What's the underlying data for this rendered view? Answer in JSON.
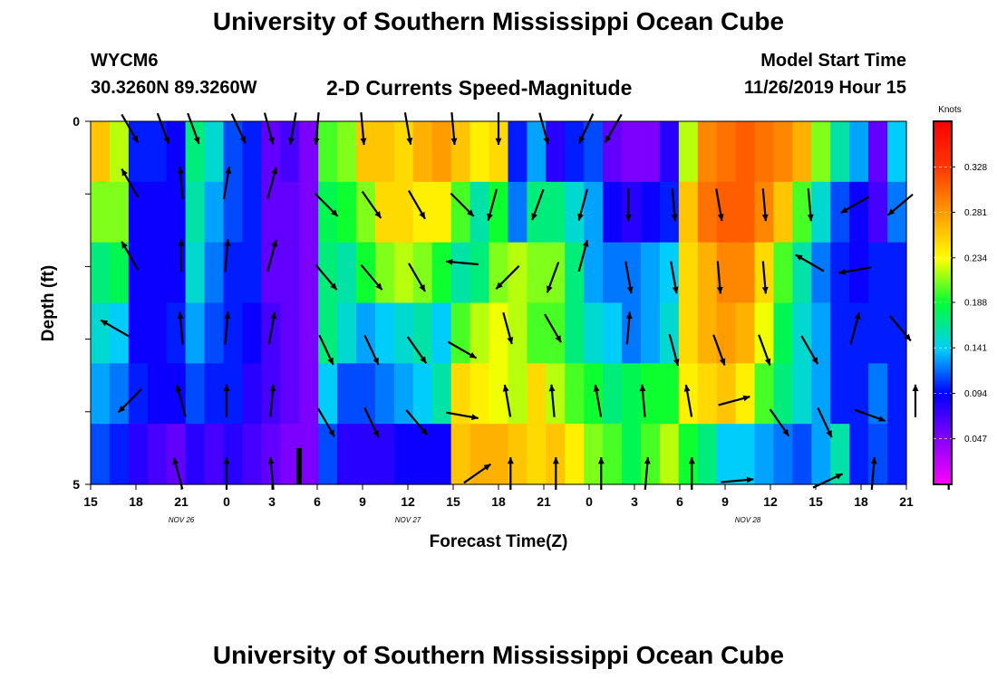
{
  "header": {
    "title": "University of Southern Mississippi Ocean Cube",
    "station": "WYCM6",
    "coords": "30.3260N 89.3260W",
    "subtitle": "2-D Currents Speed-Magnitude",
    "model_start_label": "Model Start Time",
    "model_start_value": "11/26/2019 Hour 15"
  },
  "footer": {
    "title": "University of Southern Mississippi Ocean Cube"
  },
  "chart_data": {
    "type": "heatmap",
    "xlabel": "Forecast Time(Z)",
    "ylabel": "Depth (ft)",
    "x_tick_labels": [
      "15",
      "18",
      "21",
      "0",
      "3",
      "6",
      "9",
      "12",
      "15",
      "18",
      "21",
      "0",
      "3",
      "6",
      "9",
      "12",
      "15",
      "18",
      "21"
    ],
    "date_labels": [
      {
        "text": "NOV  26",
        "at_tick": 2
      },
      {
        "text": "NOV  27",
        "at_tick": 7
      },
      {
        "text": "NOV  28",
        "at_tick": 14.5
      }
    ],
    "y_tick_labels": [
      "0",
      "5"
    ],
    "ylim": [
      0,
      5
    ],
    "colorbar": {
      "unit": "Knots",
      "min": 0.0,
      "max": 0.375,
      "labels": [
        "0.328",
        "0.281",
        "0.234",
        "0.188",
        "0.141",
        "0.094",
        "0.047"
      ],
      "label_values": [
        0.328,
        0.281,
        0.234,
        0.188,
        0.141,
        0.094,
        0.047
      ]
    },
    "depth_rows": 5,
    "speeds": [
      [
        0.26,
        0.22,
        0.1,
        0.1,
        0.09,
        0.17,
        0.15,
        0.11,
        0.1,
        0.06,
        0.07,
        0.05,
        0.2,
        0.21,
        0.26,
        0.26,
        0.25,
        0.27,
        0.28,
        0.26,
        0.24,
        0.25,
        0.1,
        0.13,
        0.08,
        0.1,
        0.11,
        0.06,
        0.05,
        0.05,
        0.08,
        0.22,
        0.29,
        0.3,
        0.31,
        0.3,
        0.29,
        0.27,
        0.21,
        0.16,
        0.13,
        0.06,
        0.14
      ],
      [
        0.21,
        0.21,
        0.09,
        0.09,
        0.09,
        0.16,
        0.13,
        0.11,
        0.1,
        0.06,
        0.06,
        0.05,
        0.18,
        0.19,
        0.21,
        0.25,
        0.25,
        0.24,
        0.24,
        0.2,
        0.16,
        0.19,
        0.12,
        0.17,
        0.17,
        0.15,
        0.13,
        0.09,
        0.08,
        0.09,
        0.1,
        0.26,
        0.3,
        0.31,
        0.31,
        0.29,
        0.26,
        0.2,
        0.15,
        0.11,
        0.09,
        0.07,
        0.12
      ],
      [
        0.17,
        0.18,
        0.09,
        0.09,
        0.09,
        0.15,
        0.12,
        0.1,
        0.1,
        0.06,
        0.06,
        0.05,
        0.17,
        0.16,
        0.19,
        0.21,
        0.22,
        0.21,
        0.19,
        0.16,
        0.17,
        0.21,
        0.22,
        0.21,
        0.21,
        0.17,
        0.13,
        0.12,
        0.12,
        0.13,
        0.14,
        0.25,
        0.27,
        0.29,
        0.29,
        0.25,
        0.2,
        0.16,
        0.12,
        0.1,
        0.09,
        0.1,
        0.1
      ],
      [
        0.15,
        0.14,
        0.09,
        0.09,
        0.1,
        0.13,
        0.11,
        0.1,
        0.09,
        0.07,
        0.06,
        0.05,
        0.17,
        0.15,
        0.13,
        0.14,
        0.15,
        0.16,
        0.14,
        0.2,
        0.22,
        0.23,
        0.22,
        0.2,
        0.2,
        0.17,
        0.15,
        0.14,
        0.12,
        0.13,
        0.15,
        0.25,
        0.27,
        0.28,
        0.27,
        0.23,
        0.18,
        0.15,
        0.13,
        0.1,
        0.1,
        0.1,
        0.1
      ],
      [
        0.13,
        0.12,
        0.1,
        0.09,
        0.09,
        0.11,
        0.1,
        0.1,
        0.08,
        0.07,
        0.06,
        0.05,
        0.14,
        0.11,
        0.11,
        0.12,
        0.13,
        0.14,
        0.16,
        0.25,
        0.24,
        0.23,
        0.22,
        0.25,
        0.22,
        0.2,
        0.19,
        0.17,
        0.18,
        0.19,
        0.19,
        0.24,
        0.25,
        0.26,
        0.24,
        0.2,
        0.17,
        0.15,
        0.13,
        0.1,
        0.1,
        0.12,
        0.1
      ],
      [
        0.11,
        0.1,
        0.08,
        0.07,
        0.06,
        0.08,
        0.07,
        0.08,
        0.07,
        0.06,
        0.05,
        0.05,
        0.11,
        0.08,
        0.08,
        0.08,
        0.09,
        0.09,
        0.09,
        0.26,
        0.27,
        0.27,
        0.26,
        0.25,
        0.26,
        0.24,
        0.21,
        0.2,
        0.18,
        0.2,
        0.22,
        0.19,
        0.17,
        0.14,
        0.14,
        0.13,
        0.12,
        0.11,
        0.13,
        0.16,
        0.1,
        0.11,
        0.1
      ]
    ],
    "vectors": [
      {
        "h": 17.6,
        "d": 0.1,
        "dir": 150,
        "len": 0.6
      },
      {
        "h": 19.8,
        "d": 0.1,
        "dir": 160,
        "len": 0.6
      },
      {
        "h": 21.8,
        "d": 0.1,
        "dir": 160,
        "len": 0.6
      },
      {
        "h": 24.8,
        "d": 0.1,
        "dir": 155,
        "len": 0.6
      },
      {
        "h": 26.8,
        "d": 0.1,
        "dir": 165,
        "len": 0.6
      },
      {
        "h": 28.4,
        "d": 0.1,
        "dir": 190,
        "len": 0.6
      },
      {
        "h": 30.0,
        "d": 0.1,
        "dir": 185,
        "len": 0.6
      },
      {
        "h": 33.0,
        "d": 0.1,
        "dir": 175,
        "len": 0.6
      },
      {
        "h": 36.0,
        "d": 0.1,
        "dir": 170,
        "len": 0.6
      },
      {
        "h": 39.0,
        "d": 0.1,
        "dir": 175,
        "len": 0.6
      },
      {
        "h": 42.0,
        "d": 0.1,
        "dir": 180,
        "len": 0.6
      },
      {
        "h": 45.0,
        "d": 0.1,
        "dir": 165,
        "len": 0.6
      },
      {
        "h": 47.8,
        "d": 0.1,
        "dir": 205,
        "len": 0.6
      },
      {
        "h": 49.6,
        "d": 0.1,
        "dir": 210,
        "len": 0.6
      },
      {
        "h": 17.6,
        "d": 0.85,
        "dir": 330,
        "len": 0.6
      },
      {
        "h": 21.0,
        "d": 0.85,
        "dir": 355,
        "len": 0.6
      },
      {
        "h": 24.0,
        "d": 0.85,
        "dir": 10,
        "len": 0.6
      },
      {
        "h": 27.0,
        "d": 0.85,
        "dir": 15,
        "len": 0.6
      },
      {
        "h": 30.6,
        "d": 1.15,
        "dir": 135,
        "len": 0.6
      },
      {
        "h": 33.6,
        "d": 1.15,
        "dir": 145,
        "len": 0.6
      },
      {
        "h": 36.6,
        "d": 1.15,
        "dir": 150,
        "len": 0.6
      },
      {
        "h": 39.6,
        "d": 1.15,
        "dir": 135,
        "len": 0.6
      },
      {
        "h": 41.6,
        "d": 1.15,
        "dir": 195,
        "len": 0.6
      },
      {
        "h": 44.6,
        "d": 1.15,
        "dir": 200,
        "len": 0.6
      },
      {
        "h": 47.6,
        "d": 1.15,
        "dir": 195,
        "len": 0.6
      },
      {
        "h": 50.6,
        "d": 1.15,
        "dir": 180,
        "len": 0.6
      },
      {
        "h": 53.6,
        "d": 1.15,
        "dir": 175,
        "len": 0.6
      },
      {
        "h": 56.6,
        "d": 1.15,
        "dir": 170,
        "len": 0.6
      },
      {
        "h": 59.6,
        "d": 1.15,
        "dir": 175,
        "len": 0.6
      },
      {
        "h": 62.6,
        "d": 1.15,
        "dir": 175,
        "len": 0.6
      },
      {
        "h": 65.6,
        "d": 1.15,
        "dir": 240,
        "len": 0.6
      },
      {
        "h": 68.6,
        "d": 1.15,
        "dir": 230,
        "len": 0.6
      },
      {
        "h": 17.6,
        "d": 1.85,
        "dir": 330,
        "len": 0.6
      },
      {
        "h": 21.0,
        "d": 1.85,
        "dir": 360,
        "len": 0.6
      },
      {
        "h": 24.0,
        "d": 1.85,
        "dir": 5,
        "len": 0.6
      },
      {
        "h": 27.0,
        "d": 1.85,
        "dir": 15,
        "len": 0.6
      },
      {
        "h": 30.6,
        "d": 2.15,
        "dir": 140,
        "len": 0.6
      },
      {
        "h": 33.6,
        "d": 2.15,
        "dir": 140,
        "len": 0.6
      },
      {
        "h": 36.6,
        "d": 2.15,
        "dir": 150,
        "len": 0.6
      },
      {
        "h": 39.6,
        "d": 1.95,
        "dir": 275,
        "len": 0.6
      },
      {
        "h": 42.6,
        "d": 2.15,
        "dir": 225,
        "len": 0.6
      },
      {
        "h": 45.6,
        "d": 2.15,
        "dir": 200,
        "len": 0.6
      },
      {
        "h": 47.6,
        "d": 1.85,
        "dir": 15,
        "len": 0.6
      },
      {
        "h": 50.6,
        "d": 2.15,
        "dir": 170,
        "len": 0.6
      },
      {
        "h": 53.6,
        "d": 2.15,
        "dir": 170,
        "len": 0.6
      },
      {
        "h": 56.6,
        "d": 2.15,
        "dir": 175,
        "len": 0.6
      },
      {
        "h": 59.6,
        "d": 2.15,
        "dir": 175,
        "len": 0.6
      },
      {
        "h": 62.6,
        "d": 1.95,
        "dir": 300,
        "len": 0.6
      },
      {
        "h": 65.6,
        "d": 2.05,
        "dir": 260,
        "len": 0.6
      },
      {
        "h": 16.6,
        "d": 2.85,
        "dir": 300,
        "len": 0.6
      },
      {
        "h": 21.0,
        "d": 2.85,
        "dir": 355,
        "len": 0.6
      },
      {
        "h": 24.0,
        "d": 2.85,
        "dir": 5,
        "len": 0.6
      },
      {
        "h": 27.0,
        "d": 2.85,
        "dir": 10,
        "len": 0.6
      },
      {
        "h": 30.6,
        "d": 3.15,
        "dir": 155,
        "len": 0.6
      },
      {
        "h": 33.6,
        "d": 3.15,
        "dir": 155,
        "len": 0.6
      },
      {
        "h": 36.6,
        "d": 3.15,
        "dir": 145,
        "len": 0.6
      },
      {
        "h": 39.6,
        "d": 3.15,
        "dir": 120,
        "len": 0.6
      },
      {
        "h": 42.6,
        "d": 2.85,
        "dir": 165,
        "len": 0.6
      },
      {
        "h": 45.6,
        "d": 2.85,
        "dir": 150,
        "len": 0.6
      },
      {
        "h": 50.6,
        "d": 2.85,
        "dir": 5,
        "len": 0.6
      },
      {
        "h": 53.6,
        "d": 3.15,
        "dir": 165,
        "len": 0.6
      },
      {
        "h": 56.6,
        "d": 3.15,
        "dir": 160,
        "len": 0.6
      },
      {
        "h": 59.6,
        "d": 3.15,
        "dir": 160,
        "len": 0.6
      },
      {
        "h": 62.6,
        "d": 3.15,
        "dir": 150,
        "len": 0.6
      },
      {
        "h": 65.6,
        "d": 2.85,
        "dir": 15,
        "len": 0.6
      },
      {
        "h": 68.6,
        "d": 2.85,
        "dir": 140,
        "len": 0.6
      },
      {
        "h": 17.6,
        "d": 3.85,
        "dir": 225,
        "len": 0.6
      },
      {
        "h": 21.0,
        "d": 3.85,
        "dir": 345,
        "len": 0.6
      },
      {
        "h": 24.0,
        "d": 3.85,
        "dir": 360,
        "len": 0.6
      },
      {
        "h": 27.0,
        "d": 3.85,
        "dir": 5,
        "len": 0.6
      },
      {
        "h": 30.6,
        "d": 4.15,
        "dir": 150,
        "len": 0.6
      },
      {
        "h": 33.6,
        "d": 4.15,
        "dir": 155,
        "len": 0.6
      },
      {
        "h": 36.6,
        "d": 4.15,
        "dir": 140,
        "len": 0.6
      },
      {
        "h": 39.6,
        "d": 4.05,
        "dir": 100,
        "len": 0.6
      },
      {
        "h": 42.6,
        "d": 3.85,
        "dir": 350,
        "len": 0.6
      },
      {
        "h": 45.6,
        "d": 3.85,
        "dir": 355,
        "len": 0.6
      },
      {
        "h": 48.6,
        "d": 3.85,
        "dir": 350,
        "len": 0.6
      },
      {
        "h": 51.6,
        "d": 3.85,
        "dir": 355,
        "len": 0.6
      },
      {
        "h": 54.6,
        "d": 3.85,
        "dir": 350,
        "len": 0.6
      },
      {
        "h": 57.6,
        "d": 3.85,
        "dir": 75,
        "len": 0.6
      },
      {
        "h": 60.6,
        "d": 4.15,
        "dir": 145,
        "len": 0.6
      },
      {
        "h": 63.6,
        "d": 4.15,
        "dir": 155,
        "len": 0.6
      },
      {
        "h": 66.6,
        "d": 4.05,
        "dir": 110,
        "len": 0.6
      },
      {
        "h": 69.6,
        "d": 3.85,
        "dir": 360,
        "len": 0.6
      },
      {
        "h": 71.6,
        "d": 3.85,
        "dir": 165,
        "len": 0.6
      },
      {
        "h": 20.8,
        "d": 4.85,
        "dir": 345,
        "len": 0.6
      },
      {
        "h": 24.0,
        "d": 4.85,
        "dir": 360,
        "len": 0.6
      },
      {
        "h": 27.0,
        "d": 4.85,
        "dir": 355,
        "len": 0.6
      },
      {
        "h": 40.6,
        "d": 4.85,
        "dir": 55,
        "len": 0.6
      },
      {
        "h": 42.8,
        "d": 4.85,
        "dir": 360,
        "len": 0.6
      },
      {
        "h": 45.8,
        "d": 4.85,
        "dir": 360,
        "len": 0.6
      },
      {
        "h": 48.8,
        "d": 4.85,
        "dir": 360,
        "len": 0.6
      },
      {
        "h": 51.8,
        "d": 4.85,
        "dir": 5,
        "len": 0.6
      },
      {
        "h": 54.8,
        "d": 4.85,
        "dir": 360,
        "len": 0.6
      },
      {
        "h": 57.8,
        "d": 4.95,
        "dir": 85,
        "len": 0.6
      },
      {
        "h": 63.8,
        "d": 4.95,
        "dir": 65,
        "len": 0.6
      },
      {
        "h": 66.8,
        "d": 4.85,
        "dir": 5,
        "len": 0.6
      },
      {
        "h": 71.8,
        "d": 4.85,
        "dir": 360,
        "len": 0.6
      }
    ],
    "current_time_marker": {
      "h": 28.8
    }
  }
}
